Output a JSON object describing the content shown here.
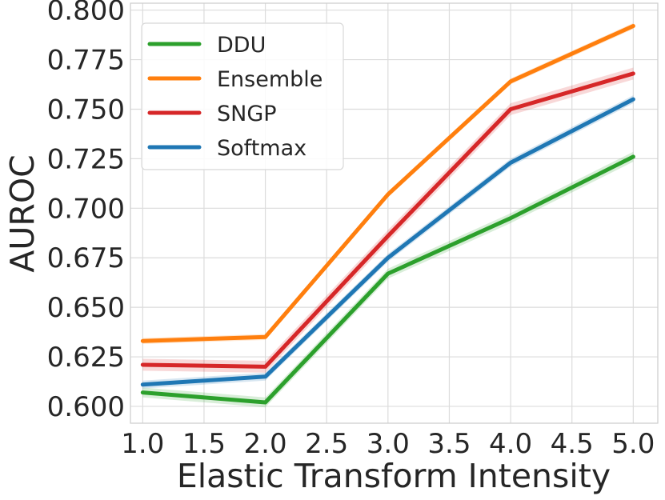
{
  "chart_data": {
    "type": "line",
    "title": "",
    "xlabel": "Elastic Transform Intensity",
    "ylabel": "AUROC",
    "xlim": [
      0.9,
      5.2
    ],
    "ylim": [
      0.5915,
      0.8035
    ],
    "x": [
      1.0,
      2.0,
      3.0,
      4.0,
      5.0
    ],
    "xticks": [
      1.0,
      1.5,
      2.0,
      2.5,
      3.0,
      3.5,
      4.0,
      4.5,
      5.0
    ],
    "xtick_labels": [
      "1.0",
      "1.5",
      "2.0",
      "2.5",
      "3.0",
      "3.5",
      "4.0",
      "4.5",
      "5.0"
    ],
    "yticks": [
      0.6,
      0.625,
      0.65,
      0.675,
      0.7,
      0.725,
      0.75,
      0.775,
      0.8
    ],
    "ytick_labels": [
      "0.600",
      "0.625",
      "0.650",
      "0.675",
      "0.700",
      "0.725",
      "0.750",
      "0.775",
      "0.800"
    ],
    "grid": true,
    "legend_position": "top-left",
    "series": [
      {
        "name": "DDU",
        "color": "#2ca02c",
        "values": [
          0.607,
          0.602,
          0.667,
          0.695,
          0.726
        ],
        "band": 0.0025
      },
      {
        "name": "Ensemble",
        "color": "#ff7f0e",
        "values": [
          0.633,
          0.635,
          0.707,
          0.764,
          0.792
        ],
        "band": 0.0015
      },
      {
        "name": "SNGP",
        "color": "#d62728",
        "values": [
          0.621,
          0.62,
          0.686,
          0.75,
          0.768
        ],
        "band": 0.003
      },
      {
        "name": "Softmax",
        "color": "#1f77b4",
        "values": [
          0.611,
          0.615,
          0.675,
          0.723,
          0.755
        ],
        "band": 0.002
      }
    ]
  }
}
